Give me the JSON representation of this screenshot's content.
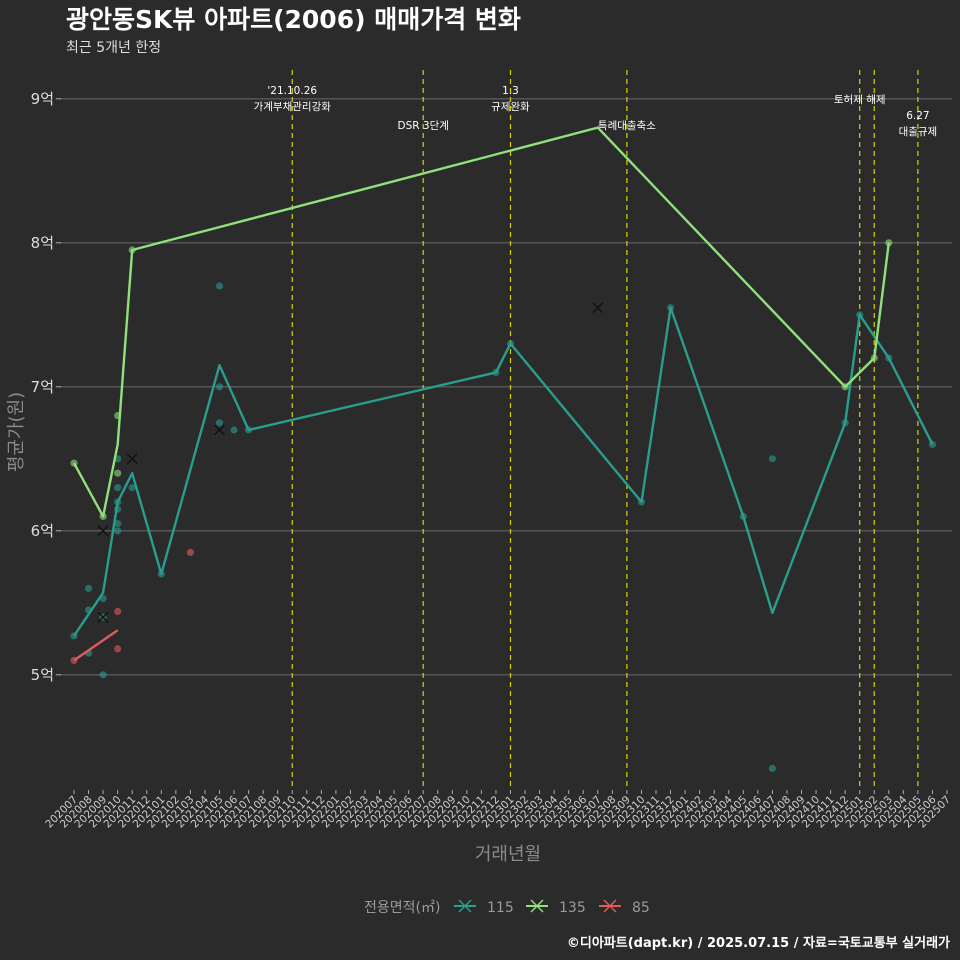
{
  "chart_data": {
    "type": "line",
    "title": "광안동SK뷰 아파트(2006) 매매가격 변화",
    "subtitle": "최근 5개년 한정",
    "xlabel": "거래년월",
    "ylabel": "평균가(원)",
    "caption": "©디아파트(dapt.kr) / 2025.07.15 / 자료=국토교통부 실거래가",
    "categories": [
      "202007",
      "202008",
      "202009",
      "202010",
      "202011",
      "202012",
      "202101",
      "202102",
      "202103",
      "202104",
      "202105",
      "202106",
      "202107",
      "202108",
      "202109",
      "202110",
      "202111",
      "202112",
      "202201",
      "202202",
      "202203",
      "202204",
      "202205",
      "202206",
      "202207",
      "202208",
      "202209",
      "202210",
      "202211",
      "202212",
      "202301",
      "202302",
      "202303",
      "202304",
      "202305",
      "202306",
      "202307",
      "202308",
      "202309",
      "202310",
      "202311",
      "202312",
      "202401",
      "202402",
      "202403",
      "202404",
      "202405",
      "202406",
      "202407",
      "202408",
      "202409",
      "202410",
      "202411",
      "202412",
      "202501",
      "202502",
      "202503",
      "202504",
      "202505",
      "202506",
      "202507"
    ],
    "yticks": [
      {
        "value": 5,
        "label": "5억"
      },
      {
        "value": 6,
        "label": "6억"
      },
      {
        "value": 7,
        "label": "7억"
      },
      {
        "value": 8,
        "label": "8억"
      },
      {
        "value": 9,
        "label": "9억"
      }
    ],
    "ylim": [
      4.2,
      9.2
    ],
    "grid": true,
    "legend": {
      "title": "전용면적(㎡)",
      "position": "bottom",
      "entries": [
        "115",
        "135",
        "85"
      ]
    },
    "series": [
      {
        "name": "115",
        "color": "#2a9d8f",
        "line": [
          [
            0,
            5.27
          ],
          [
            2,
            5.57
          ],
          [
            3,
            6.2
          ],
          [
            4,
            6.4
          ],
          [
            6,
            5.7
          ],
          [
            10,
            7.15
          ],
          [
            12,
            6.7
          ],
          [
            29,
            7.1
          ],
          [
            30,
            7.3
          ],
          [
            39,
            6.2
          ],
          [
            41,
            7.55
          ],
          [
            46,
            6.1
          ],
          [
            48,
            5.43
          ],
          [
            53,
            6.75
          ],
          [
            54,
            7.5
          ],
          [
            56,
            7.2
          ],
          [
            59,
            6.6
          ]
        ],
        "points": [
          [
            0,
            5.27
          ],
          [
            1,
            5.6
          ],
          [
            1,
            5.45
          ],
          [
            1,
            5.15
          ],
          [
            2,
            5.53
          ],
          [
            2,
            5.4
          ],
          [
            2,
            5.0
          ],
          [
            3,
            6.5
          ],
          [
            3,
            6.3
          ],
          [
            3,
            6.2
          ],
          [
            3,
            6.15
          ],
          [
            3,
            6.05
          ],
          [
            3,
            6.0
          ],
          [
            4,
            6.3
          ],
          [
            6,
            5.7
          ],
          [
            10,
            7.7
          ],
          [
            10,
            7.0
          ],
          [
            10,
            6.75
          ],
          [
            11,
            6.7
          ],
          [
            12,
            6.7
          ],
          [
            29,
            7.1
          ],
          [
            30,
            7.3
          ],
          [
            39,
            6.2
          ],
          [
            41,
            7.55
          ],
          [
            46,
            6.1
          ],
          [
            48,
            6.5
          ],
          [
            48,
            4.35
          ],
          [
            53,
            6.75
          ],
          [
            54,
            7.5
          ],
          [
            56,
            7.2
          ],
          [
            59,
            6.6
          ]
        ],
        "cancelled": [
          [
            2,
            6.0
          ],
          [
            2,
            5.4
          ],
          [
            4,
            6.5
          ],
          [
            10,
            6.7
          ],
          [
            36,
            7.55
          ]
        ]
      },
      {
        "name": "135",
        "color": "#90e07c",
        "line": [
          [
            0,
            6.47
          ],
          [
            2,
            6.1
          ],
          [
            3,
            6.6
          ],
          [
            4,
            7.95
          ],
          [
            36,
            8.8
          ],
          [
            53,
            7.0
          ],
          [
            55,
            7.2
          ],
          [
            56,
            8.0
          ]
        ],
        "points": [
          [
            0,
            6.47
          ],
          [
            2,
            6.1
          ],
          [
            3,
            6.8
          ],
          [
            3,
            6.4
          ],
          [
            4,
            7.95
          ],
          [
            53,
            7.0
          ],
          [
            55,
            7.2
          ],
          [
            56,
            8.0
          ]
        ],
        "cancelled": []
      },
      {
        "name": "85",
        "color": "#e05c5c",
        "line": [
          [
            0,
            5.1
          ],
          [
            3,
            5.31
          ]
        ],
        "points": [
          [
            0,
            5.1
          ],
          [
            3,
            5.44
          ],
          [
            3,
            5.18
          ],
          [
            8,
            5.85
          ]
        ],
        "cancelled": []
      }
    ],
    "annotations": [
      {
        "x": 15,
        "lines": [
          "'21.10.26",
          "가계부채관리강화"
        ],
        "row": 0
      },
      {
        "x": 24,
        "lines": [
          "DSR 3단계"
        ],
        "row": 2
      },
      {
        "x": 30,
        "lines": [
          "1.3",
          "규제완화"
        ],
        "row": 0
      },
      {
        "x": 38,
        "lines": [
          "특례대출축소"
        ],
        "row": 2
      },
      {
        "x": 54,
        "lines": [
          "토허제 해제"
        ],
        "row": 1
      },
      {
        "x": 55,
        "lines": [],
        "row": 1
      },
      {
        "x": 58,
        "lines": [
          "6.27",
          "대출규제"
        ],
        "row": 3
      }
    ]
  }
}
